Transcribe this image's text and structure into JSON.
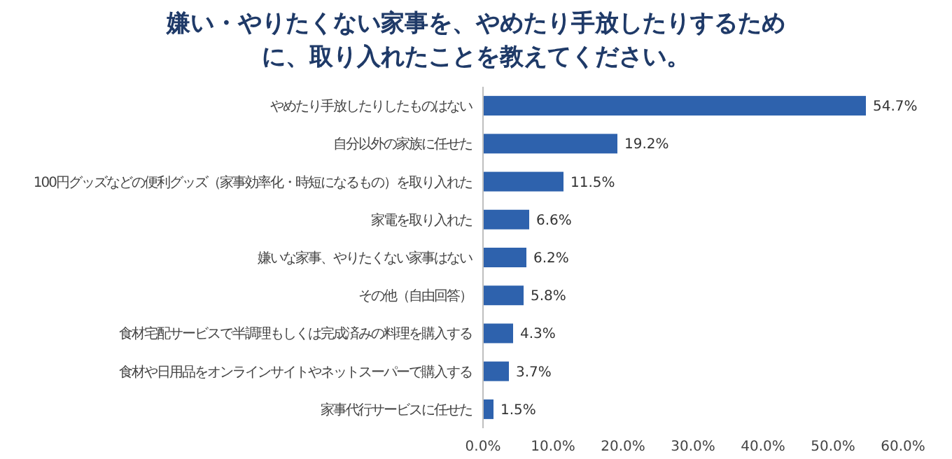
{
  "chart_data": {
    "type": "bar",
    "orientation": "horizontal",
    "title": "嫌い・やりたくない家事を、やめたり手放したりするために、取り入れたことを教えてください。",
    "categories": [
      "やめたり手放したりしたものはない",
      "自分以外の家族に任せた",
      "100円グッズなどの便利グッズ（家事効率化・時短になるもの）を取り入れた",
      "家電を取り入れた",
      "嫌いな家事、やりたくない家事はない",
      "その他（自由回答）",
      "食材宅配サービスで半調理もしくは完成済みの料理を購入する",
      "食材や日用品をオンラインサイトやネットスーパーで購入する",
      "家事代行サービスに任せた"
    ],
    "values": [
      54.7,
      19.2,
      11.5,
      6.6,
      6.2,
      5.8,
      4.3,
      3.7,
      1.5
    ],
    "value_labels": [
      "54.7%",
      "19.2%",
      "11.5%",
      "6.6%",
      "6.2%",
      "5.8%",
      "4.3%",
      "3.7%",
      "1.5%"
    ],
    "color": "#2e62ad",
    "xlim": [
      0,
      60
    ],
    "xticks": [
      {
        "value": 0,
        "label": "0.0%"
      },
      {
        "value": 10,
        "label": "10.0%"
      },
      {
        "value": 20,
        "label": "20.0%"
      },
      {
        "value": 30,
        "label": "30.0%"
      },
      {
        "value": 40,
        "label": "40.0%"
      },
      {
        "value": 50,
        "label": "50.0%"
      },
      {
        "value": 60,
        "label": "60.0%"
      }
    ]
  }
}
